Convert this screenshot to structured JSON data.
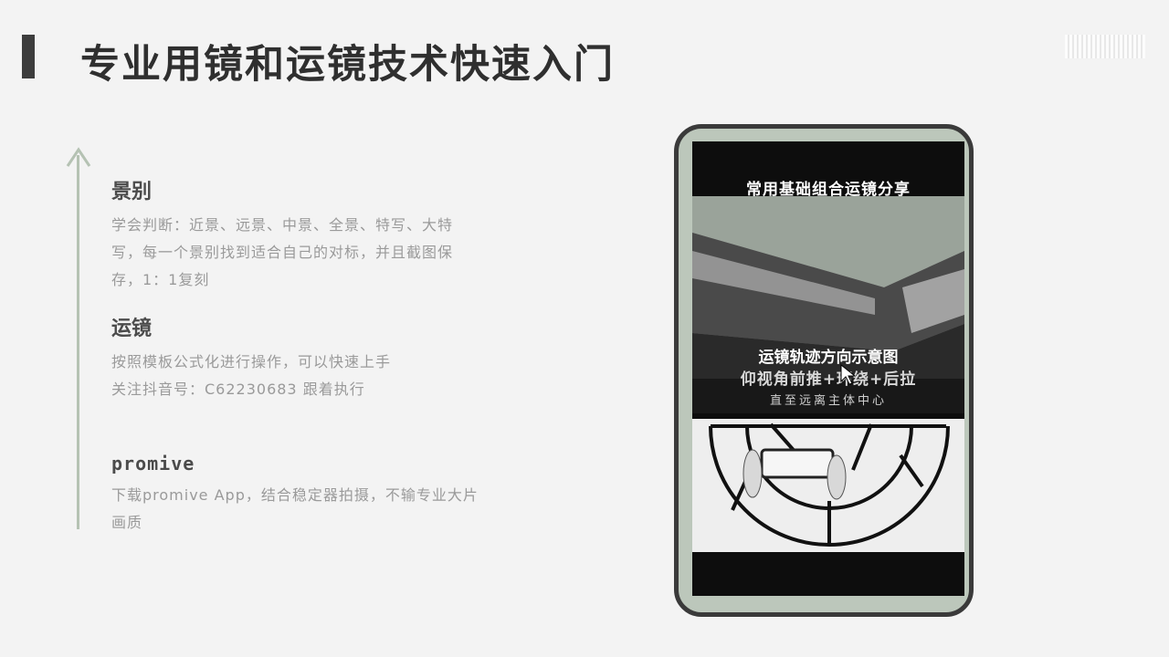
{
  "slide": {
    "title": "专业用镜和运镜技术快速入门"
  },
  "sections": [
    {
      "heading": "景别",
      "lines": [
        "学会判断：近景、远景、中景、全景、特写、大特",
        "写，每一个景别找到适合自己的对标，并且截图保",
        "存，1：1复刻"
      ]
    },
    {
      "heading": "运镜",
      "lines": [
        "按照模板公式化进行操作，可以快速上手",
        "关注抖音号：C62230683    跟着执行"
      ]
    },
    {
      "heading": "promive",
      "lines": [
        "下载promive App，结合稳定器拍摄，不输专业大片",
        "画质"
      ]
    }
  ],
  "phone": {
    "video_top_caption": "常用基础组合运镜分享",
    "overlay_line_1": "运镜轨迹方向示意图",
    "overlay_line_2": "仰视角前推+环绕+后拉",
    "overlay_line_3": "直至远离主体中心"
  },
  "colors": {
    "title": "#2f2f2f",
    "body_text": "#9a9a9a",
    "heading": "#4b4b4b",
    "timeline": "#b5c2b3",
    "phone_frame": "#3a3a3a",
    "phone_body": "#bcc7bb"
  },
  "icons": {
    "timeline": "arrow-up-icon",
    "cursor": "mouse-pointer-icon"
  }
}
